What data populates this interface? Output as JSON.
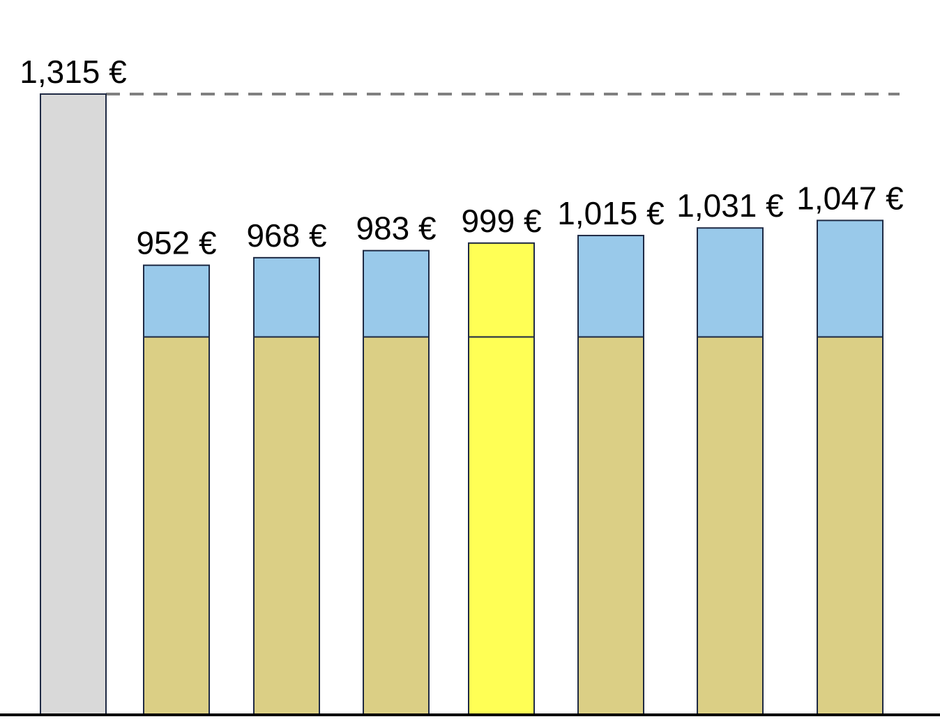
{
  "chart_data": {
    "type": "bar",
    "stacked": true,
    "categories": [
      "",
      "",
      "",
      "",
      "",
      "",
      "",
      ""
    ],
    "data_labels": [
      "1,315 €",
      "952 €",
      "968 €",
      "983 €",
      "999 €",
      "1,015 €",
      "1,031 €",
      "1,047 €"
    ],
    "totals": [
      1315,
      952,
      968,
      983,
      999,
      1015,
      1031,
      1047
    ],
    "series": [
      {
        "values": [
          1315,
          800,
          800,
          800,
          800,
          800,
          800,
          800
        ]
      },
      {
        "values": [
          0,
          152,
          168,
          183,
          199,
          215,
          231,
          247
        ]
      }
    ],
    "bar_colors": {
      "reference": "#d9d9d9",
      "base": "#dbcf85",
      "increment": "#99c9ea",
      "highlight": "#ffff55",
      "outline": "#1f2a44"
    },
    "highlight_index": 4,
    "reference_line": {
      "value": 1315,
      "style": "dashed",
      "color": "#808080"
    },
    "ylim": [
      0,
      1315
    ],
    "grid": false,
    "legend": "none",
    "title": "",
    "xlabel": "",
    "ylabel": ""
  }
}
